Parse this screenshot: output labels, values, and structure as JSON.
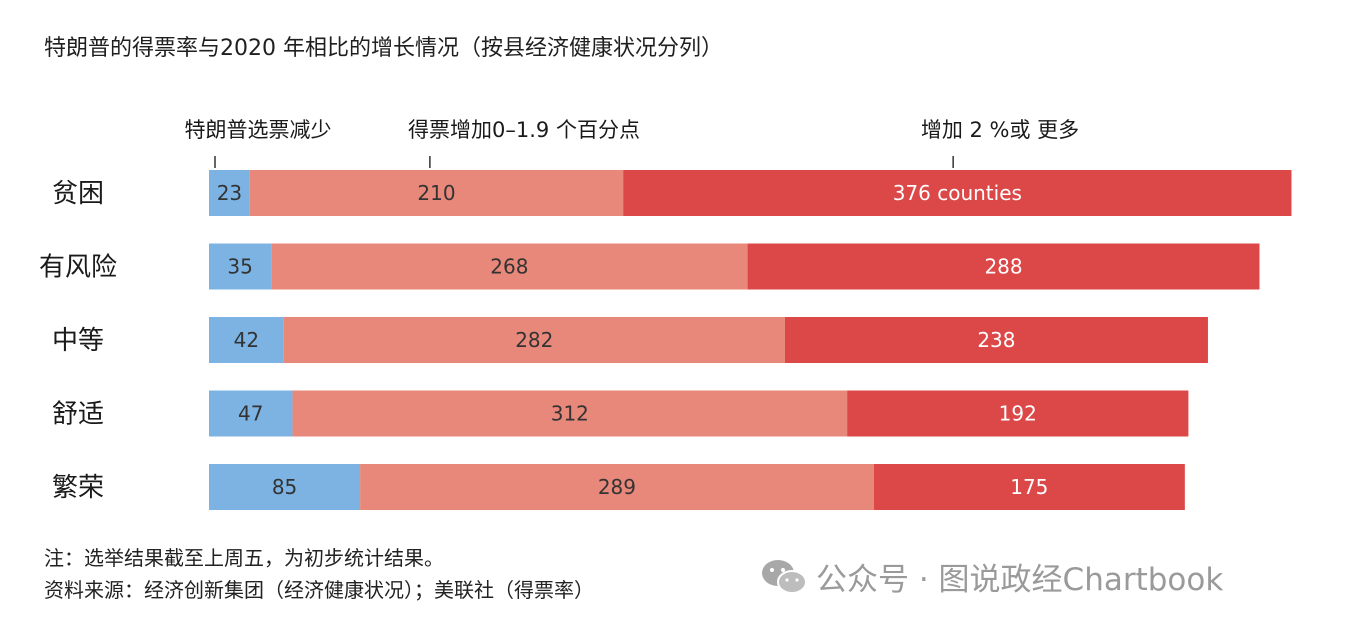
{
  "title": "特朗普的得票率与2020 年相比的增长情况（按县经济健康状况分列）",
  "notes": {
    "note": "注：选举结果截至上周五，为初步统计结果。",
    "source": "资料来源：经济创新集团（经济健康状况）；美联社（得票率）"
  },
  "watermark": {
    "text": "公众号 · 图说政经Chartbook",
    "icon": "wechat-icon"
  },
  "colors": {
    "decrease": "#7cb3e3",
    "increase_small": "#e8887a",
    "increase_large": "#dc4848",
    "label_dark": "#333333",
    "label_light": "#ffffff"
  },
  "chart_data": {
    "type": "bar",
    "orientation": "horizontal",
    "stacked": true,
    "categories": [
      "贫困",
      "有风险",
      "中等",
      "舒适",
      "繁荣"
    ],
    "series": [
      {
        "name": "特朗普选票减少",
        "values": [
          23,
          35,
          42,
          47,
          85
        ]
      },
      {
        "name": "得票增加0–1.9 个百分点",
        "values": [
          210,
          268,
          282,
          312,
          289
        ]
      },
      {
        "name": "增加 2 %或 更多",
        "values": [
          376,
          288,
          238,
          192,
          175
        ]
      }
    ],
    "data_labels": [
      [
        "23",
        "210",
        "376 counties"
      ],
      [
        "35",
        "268",
        "288"
      ],
      [
        "42",
        "282",
        "238"
      ],
      [
        "47",
        "312",
        "192"
      ],
      [
        "85",
        "289",
        "175"
      ]
    ],
    "legend_placement": "top (labels above first bar)",
    "xlim": [
      0,
      609
    ],
    "grid": false,
    "axis_visible": false
  }
}
